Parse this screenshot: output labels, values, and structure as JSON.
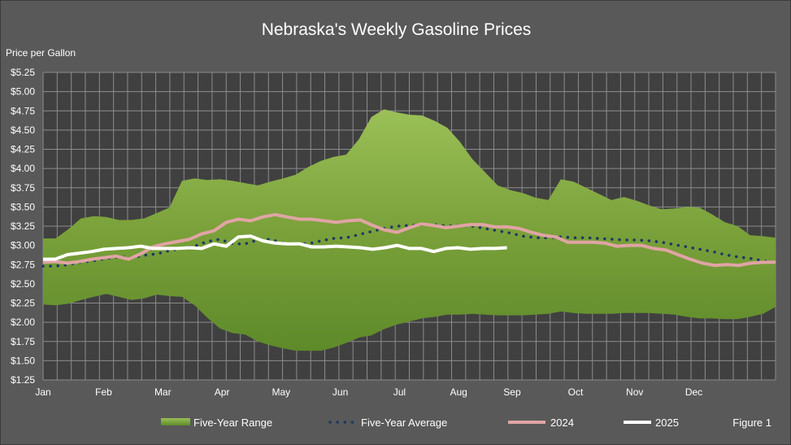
{
  "title": "Nebraska's Weekly Gasoline Prices",
  "figure_label": "Figure 1",
  "chart_data": {
    "type": "line",
    "title": "Nebraska's Weekly Gasoline Prices",
    "ylabel": "Price per Gallon",
    "xlabel": "",
    "ylim": [
      1.25,
      5.25
    ],
    "ytick_step": 0.25,
    "yticks": [
      "$1.25",
      "$1.50",
      "$1.75",
      "$2.00",
      "$2.25",
      "$2.50",
      "$2.75",
      "$3.00",
      "$3.25",
      "$3.50",
      "$3.75",
      "$4.00",
      "$4.25",
      "$4.50",
      "$4.75",
      "$5.00",
      "$5.25"
    ],
    "weeks": 52,
    "month_labels": [
      "Jan",
      "Feb",
      "Mar",
      "Apr",
      "May",
      "Jun",
      "Jul",
      "Aug",
      "Sep",
      "Oct",
      "Nov",
      "Dec"
    ],
    "month_label_weeks": [
      0,
      4.3,
      8.5,
      12.7,
      16.9,
      21.1,
      25.3,
      29.5,
      33.3,
      37.8,
      42.0,
      46.2
    ],
    "grid": true,
    "legend_position": "bottom",
    "colors": {
      "range_fill": "#7aa13a",
      "range_fill_light": "#9bc058",
      "average": "#1f3864",
      "series_2024": "#e0a4a4",
      "series_2025": "#ffffff",
      "plot_background": "#404040",
      "grid": "#8c8c8c"
    },
    "series": [
      {
        "name": "Five-Year Range",
        "kind": "range",
        "high": [
          3.09,
          3.09,
          3.21,
          3.35,
          3.38,
          3.37,
          3.33,
          3.33,
          3.35,
          3.42,
          3.49,
          3.84,
          3.87,
          3.85,
          3.86,
          3.84,
          3.81,
          3.78,
          3.83,
          3.87,
          3.92,
          4.02,
          4.1,
          4.15,
          4.18,
          4.38,
          4.67,
          4.77,
          4.73,
          4.7,
          4.69,
          4.62,
          4.53,
          4.35,
          4.12,
          3.95,
          3.78,
          3.72,
          3.68,
          3.62,
          3.59,
          3.86,
          3.83,
          3.75,
          3.67,
          3.59,
          3.63,
          3.58,
          3.52,
          3.47,
          3.48,
          3.5,
          3.49,
          3.4,
          3.3,
          3.25,
          3.13,
          3.12,
          3.1
        ],
        "low": [
          2.23,
          2.22,
          2.24,
          2.29,
          2.33,
          2.37,
          2.33,
          2.29,
          2.31,
          2.36,
          2.34,
          2.33,
          2.22,
          2.06,
          1.92,
          1.86,
          1.84,
          1.75,
          1.7,
          1.66,
          1.63,
          1.63,
          1.63,
          1.67,
          1.73,
          1.8,
          1.83,
          1.91,
          1.97,
          2.01,
          2.05,
          2.07,
          2.1,
          2.1,
          2.11,
          2.1,
          2.09,
          2.09,
          2.09,
          2.1,
          2.11,
          2.14,
          2.12,
          2.11,
          2.11,
          2.11,
          2.12,
          2.12,
          2.12,
          2.11,
          2.1,
          2.07,
          2.05,
          2.05,
          2.04,
          2.04,
          2.07,
          2.11,
          2.2
        ]
      },
      {
        "name": "Five-Year Average",
        "kind": "dotted",
        "values": [
          2.73,
          2.73,
          2.75,
          2.78,
          2.8,
          2.83,
          2.85,
          2.84,
          2.87,
          2.89,
          2.93,
          2.96,
          2.99,
          3.05,
          3.08,
          3.02,
          3.02,
          3.07,
          3.08,
          3.03,
          3.02,
          3.02,
          3.06,
          3.09,
          3.1,
          3.14,
          3.18,
          3.22,
          3.25,
          3.26,
          3.27,
          3.27,
          3.25,
          3.26,
          3.25,
          3.22,
          3.19,
          3.16,
          3.12,
          3.1,
          3.1,
          3.11,
          3.1,
          3.1,
          3.09,
          3.08,
          3.07,
          3.07,
          3.06,
          3.04,
          3.01,
          2.98,
          2.95,
          2.92,
          2.88,
          2.85,
          2.83,
          2.8,
          2.77
        ]
      },
      {
        "name": "2024",
        "kind": "line",
        "values": [
          2.78,
          2.79,
          2.77,
          2.79,
          2.82,
          2.84,
          2.86,
          2.82,
          2.89,
          2.98,
          3.02,
          3.05,
          3.08,
          3.15,
          3.19,
          3.3,
          3.34,
          3.32,
          3.37,
          3.4,
          3.37,
          3.34,
          3.34,
          3.32,
          3.3,
          3.32,
          3.33,
          3.26,
          3.2,
          3.17,
          3.23,
          3.28,
          3.26,
          3.23,
          3.25,
          3.27,
          3.27,
          3.24,
          3.24,
          3.22,
          3.17,
          3.13,
          3.11,
          3.04,
          3.04,
          3.04,
          3.03,
          2.99,
          3.0,
          3.0,
          2.96,
          2.94,
          2.88,
          2.82,
          2.77,
          2.74,
          2.75,
          2.74,
          2.77,
          2.78,
          2.78
        ]
      },
      {
        "name": "2025",
        "kind": "line",
        "values": [
          2.82,
          2.82,
          2.88,
          2.9,
          2.92,
          2.95,
          2.96,
          2.97,
          2.99,
          2.96,
          2.96,
          2.96,
          2.97,
          2.96,
          3.02,
          2.99,
          3.11,
          3.12,
          3.06,
          3.03,
          3.02,
          3.02,
          2.98,
          2.98,
          2.99,
          2.98,
          2.97,
          2.95,
          2.97,
          3.0,
          2.96,
          2.96,
          2.92,
          2.96,
          2.97,
          2.95,
          2.96,
          2.96,
          2.97
        ]
      }
    ]
  }
}
